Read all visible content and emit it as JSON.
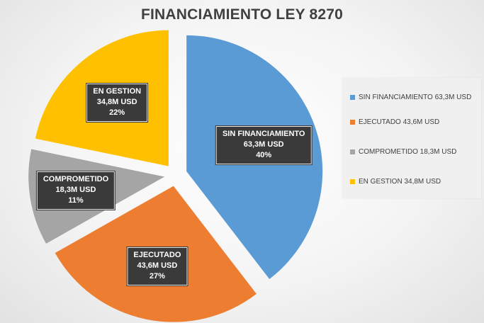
{
  "chart_data": {
    "type": "pie",
    "title": "FINANCIAMIENTO LEY 8270",
    "unit": "M USD",
    "legend_position": "right",
    "exploded": true,
    "start_angle_deg": 0,
    "direction": "clockwise",
    "slices": [
      {
        "category": "SIN FINANCIAMIENTO",
        "value": 63.3,
        "percent": 40,
        "color": "#5b9bd5",
        "label_lines": [
          "SIN FINANCIAMIENTO",
          "63,3M USD",
          "40%"
        ],
        "legend_text": "SIN FINANCIAMIENTO  63,3M USD"
      },
      {
        "category": "EJECUTADO",
        "value": 43.6,
        "percent": 27,
        "color": "#ed7d31",
        "label_lines": [
          "EJECUTADO",
          "43,6M USD",
          "27%"
        ],
        "legend_text": "EJECUTADO 43,6M USD"
      },
      {
        "category": "COMPROMETIDO",
        "value": 18.3,
        "percent": 11,
        "color": "#a5a5a5",
        "label_lines": [
          "COMPROMETIDO",
          "18,3M USD",
          "11%"
        ],
        "legend_text": "COMPROMETIDO  18,3M USD"
      },
      {
        "category": "EN GESTION",
        "value": 34.8,
        "percent": 22,
        "color": "#ffc000",
        "label_lines": [
          "EN GESTION",
          "34,8M USD",
          "22%"
        ],
        "legend_text": "EN GESTION 34,8M USD"
      }
    ]
  }
}
